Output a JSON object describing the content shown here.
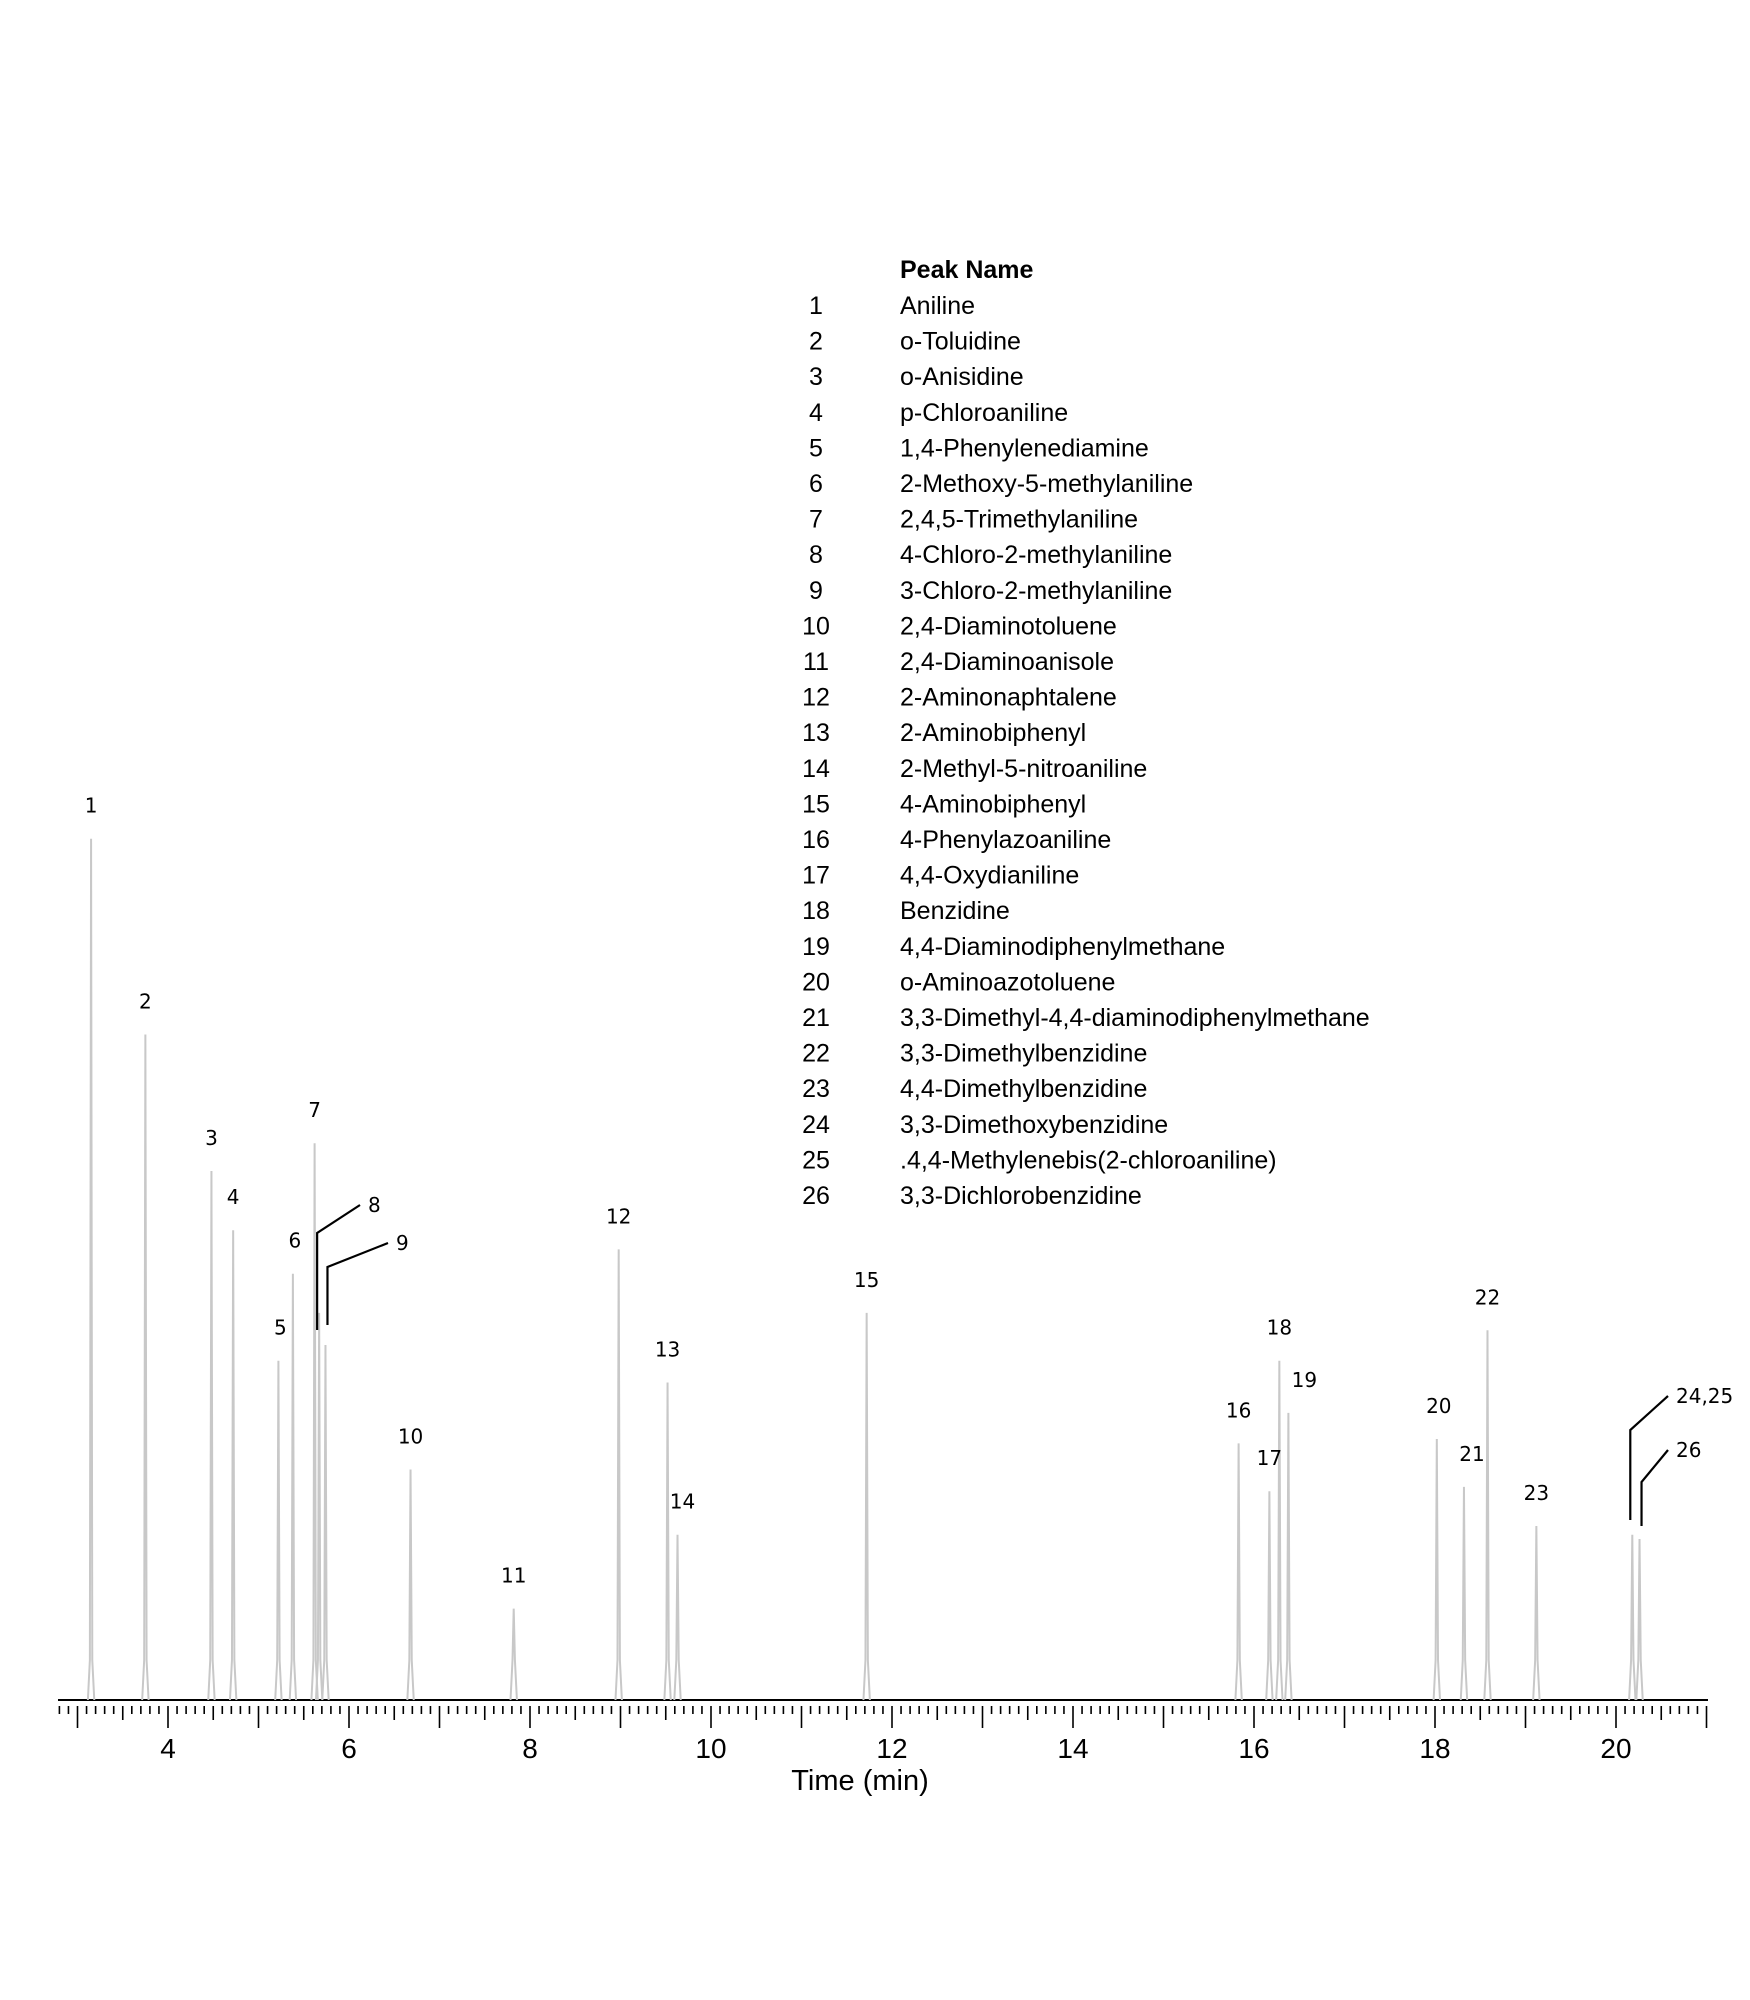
{
  "chart_data": {
    "type": "line",
    "title": "",
    "xlabel": "Time (min)",
    "ylabel": "",
    "xlim": [
      2.75,
      21.05
    ],
    "x_ticks": [
      "4",
      "6",
      "8",
      "10",
      "12",
      "14",
      "16",
      "18",
      "20"
    ],
    "grid": false,
    "legend": {
      "placement": "top-center",
      "header": "Peak Name",
      "entries": [
        {
          "number": "1",
          "name": "Aniline"
        },
        {
          "number": "2",
          "name": "o-Toluidine"
        },
        {
          "number": "3",
          "name": "o-Anisidine"
        },
        {
          "number": "4",
          "name": "p-Chloroaniline"
        },
        {
          "number": "5",
          "name": "1,4-Phenylenediamine"
        },
        {
          "number": "6",
          "name": "2-Methoxy-5-methylaniline"
        },
        {
          "number": "7",
          "name": "2,4,5-Trimethylaniline"
        },
        {
          "number": "8",
          "name": "4-Chloro-2-methylaniline"
        },
        {
          "number": "9",
          "name": "3-Chloro-2-methylaniline"
        },
        {
          "number": "10",
          "name": "2,4-Diaminotoluene"
        },
        {
          "number": "11",
          "name": "2,4-Diaminoanisole"
        },
        {
          "number": "12",
          "name": "2-Aminonaphtalene"
        },
        {
          "number": "13",
          "name": "2-Aminobiphenyl"
        },
        {
          "number": "14",
          "name": "2-Methyl-5-nitroaniline"
        },
        {
          "number": "15",
          "name": "4-Aminobiphenyl"
        },
        {
          "number": "16",
          "name": "4-Phenylazoaniline"
        },
        {
          "number": "17",
          "name": "4,4-Oxydianiline"
        },
        {
          "number": "18",
          "name": "Benzidine"
        },
        {
          "number": "19",
          "name": "4,4-Diaminodiphenylmethane"
        },
        {
          "number": "20",
          "name": "o-Aminoazotoluene"
        },
        {
          "number": "21",
          "name": "3,3-Dimethyl-4,4-diaminodiphenylmethane"
        },
        {
          "number": "22",
          "name": "3,3-Dimethylbenzidine"
        },
        {
          "number": "23",
          "name": "4,4-Dimethylbenzidine"
        },
        {
          "number": "24",
          "name": "3,3-Dimethoxybenzidine"
        },
        {
          "number": "25",
          "name": ".4,4-Methylenebis(2-chloroaniline)"
        },
        {
          "number": "26",
          "name": "3,3-Dichlorobenzidine"
        }
      ]
    },
    "peaks": [
      {
        "label": "1",
        "time": 3.15,
        "height": 0.99
      },
      {
        "label": "2",
        "time": 3.75,
        "height": 0.765
      },
      {
        "label": "3",
        "time": 4.48,
        "height": 0.608
      },
      {
        "label": "4",
        "time": 4.72,
        "height": 0.54
      },
      {
        "label": "5",
        "time": 5.22,
        "height": 0.39
      },
      {
        "label": "6",
        "time": 5.38,
        "height": 0.49
      },
      {
        "label": "7",
        "time": 5.62,
        "height": 0.64
      },
      {
        "label": "8",
        "time": 5.67,
        "height": 0.445
      },
      {
        "label": "9",
        "time": 5.74,
        "height": 0.408
      },
      {
        "label": "10",
        "time": 6.68,
        "height": 0.265
      },
      {
        "label": "11",
        "time": 7.82,
        "height": 0.105
      },
      {
        "label": "12",
        "time": 8.98,
        "height": 0.518
      },
      {
        "label": "13",
        "time": 9.52,
        "height": 0.365
      },
      {
        "label": "14",
        "time": 9.63,
        "height": 0.19
      },
      {
        "label": "15",
        "time": 11.72,
        "height": 0.445
      },
      {
        "label": "16",
        "time": 15.83,
        "height": 0.295
      },
      {
        "label": "17",
        "time": 16.17,
        "height": 0.24
      },
      {
        "label": "18",
        "time": 16.28,
        "height": 0.39
      },
      {
        "label": "19",
        "time": 16.38,
        "height": 0.33
      },
      {
        "label": "20",
        "time": 18.02,
        "height": 0.3
      },
      {
        "label": "21",
        "time": 18.32,
        "height": 0.245
      },
      {
        "label": "22",
        "time": 18.58,
        "height": 0.425
      },
      {
        "label": "23",
        "time": 19.12,
        "height": 0.2
      },
      {
        "label": "24,25",
        "time": 20.18,
        "height": 0.19
      },
      {
        "label": "26",
        "time": 20.26,
        "height": 0.185
      }
    ]
  }
}
